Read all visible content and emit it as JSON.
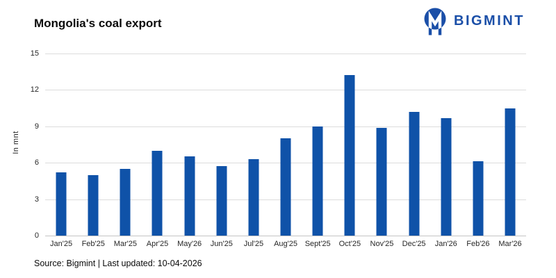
{
  "header": {
    "title": "Mongolia's coal export",
    "logo": {
      "brand": "BIGMINT",
      "icon": "bigmint-monogram-icon",
      "color": "#1b4fa8"
    }
  },
  "chart_data": {
    "type": "bar",
    "title": "Mongolia's coal export",
    "categories": [
      "Jan'25",
      "Feb'25",
      "Mar'25",
      "Apr'25",
      "May'26",
      "Jun'25",
      "Jul'25",
      "Aug'25",
      "Sept'25",
      "Oct'25",
      "Nov'25",
      "Dec'25",
      "Jan'26",
      "Feb'26",
      "Mar'26"
    ],
    "values": [
      5.2,
      5.0,
      5.5,
      7.0,
      6.5,
      5.7,
      6.3,
      8.0,
      9.0,
      13.2,
      8.9,
      10.2,
      9.7,
      6.1,
      10.5
    ],
    "xlabel": "",
    "ylabel": "In mnt",
    "ylim": [
      0,
      15
    ],
    "yticks": [
      0,
      3,
      6,
      9,
      12,
      15
    ],
    "grid": "horizontal",
    "legend": "none",
    "bar_color": "#0f52a8",
    "gridline_color": "#dcdcdc",
    "axis_line_color": "#c4c4c4",
    "tick_label_color": "#262626"
  },
  "footer": {
    "source": "Source: Bigmint | Last updated: 10-04-2026"
  }
}
